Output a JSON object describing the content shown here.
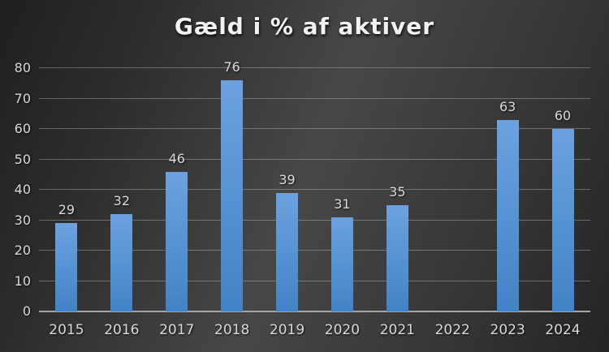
{
  "chart_data": {
    "type": "bar",
    "title": "Gæld i % af aktiver",
    "categories": [
      "2015",
      "2016",
      "2017",
      "2018",
      "2019",
      "2020",
      "2021",
      "2022",
      "2023",
      "2024"
    ],
    "values": [
      29,
      32,
      46,
      76,
      39,
      31,
      35,
      null,
      63,
      60
    ],
    "xlabel": "",
    "ylabel": "",
    "ylim": [
      0,
      80
    ],
    "ytick_step": 10,
    "yticks": [
      0,
      10,
      20,
      30,
      40,
      50,
      60,
      70,
      80
    ],
    "grid": true,
    "legend": null,
    "data_labels": true,
    "colors": {
      "bar_top": "#6ca2df",
      "bar_bottom": "#4283c5",
      "gridline": "#bfbfbf",
      "axis_line": "#a6a6a6",
      "title_text": "#f2f2f2",
      "label_text": "#d9d9d9",
      "background_light": "#474747",
      "background_dark": "#1f1f1f"
    }
  }
}
